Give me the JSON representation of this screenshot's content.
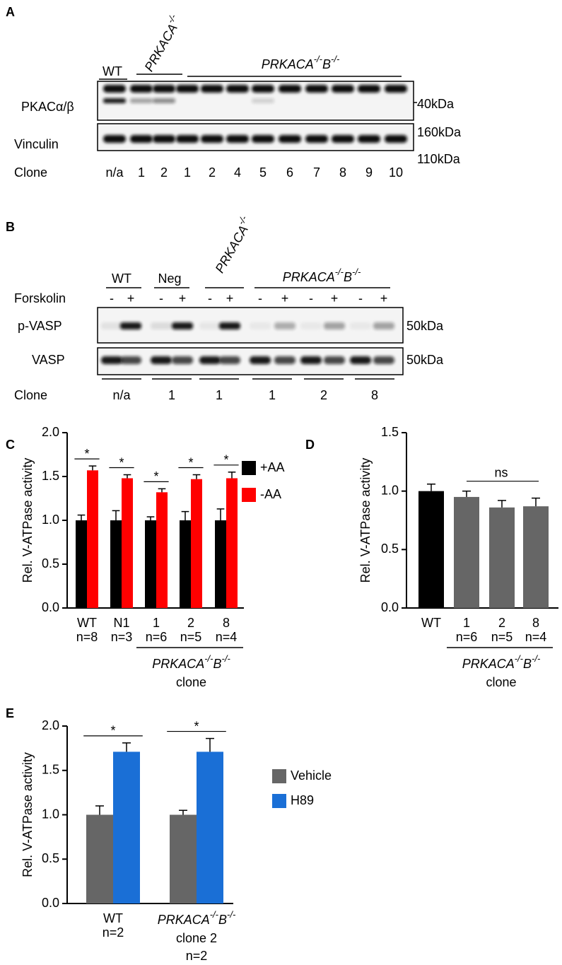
{
  "genotype": {
    "gene_a": "PRKACA",
    "sup": "-/-",
    "gene_b": "B"
  },
  "panel_a": {
    "label": "A",
    "wt": "WT",
    "rows": [
      "PKACα/β",
      "Vinculin"
    ],
    "markers": [
      "40kDa",
      "160kDa",
      "110kDa"
    ],
    "clone_title": "Clone",
    "clones": [
      "n/a",
      "1",
      "2",
      "1",
      "2",
      "4",
      "5",
      "6",
      "7",
      "8",
      "9",
      "10"
    ]
  },
  "panel_b": {
    "label": "B",
    "groups": [
      "WT",
      "Neg"
    ],
    "treatment": "Forskolin",
    "signs": [
      "-",
      "+"
    ],
    "rows": [
      "p-VASP",
      "VASP"
    ],
    "marker": "50kDa",
    "clone_title": "Clone",
    "clones": [
      "n/a",
      "1",
      "1",
      "1",
      "2",
      "8"
    ]
  },
  "chart_data": [
    {
      "panel_label": "C",
      "type": "bar",
      "ylabel": "Rel. V-ATPase activity",
      "categories": [
        "WT",
        "N1",
        "1",
        "2",
        "8"
      ],
      "n_labels": [
        "n=8",
        "n=3",
        "n=6",
        "n=5",
        "n=4"
      ],
      "series": [
        {
          "name": "+AA",
          "color": "#000000",
          "values": [
            1.0,
            1.0,
            1.0,
            1.0,
            1.0
          ],
          "errors": [
            0.06,
            0.11,
            0.04,
            0.1,
            0.13
          ]
        },
        {
          "name": "-AA",
          "color": "#ff0000",
          "values": [
            1.57,
            1.48,
            1.32,
            1.47,
            1.48
          ],
          "errors": [
            0.05,
            0.04,
            0.04,
            0.05,
            0.07
          ]
        }
      ],
      "significance": [
        "*",
        "*",
        "*",
        "*",
        "*"
      ],
      "group_label": "clone",
      "ylim": [
        0,
        2
      ],
      "yticks": [
        {
          "value": 0,
          "label": "0.0"
        },
        0.5,
        {
          "value": 1,
          "label": "1.0"
        },
        1.5,
        {
          "value": 2,
          "label": "2.0"
        }
      ],
      "legend": "top right"
    },
    {
      "panel_label": "D",
      "type": "bar",
      "ylabel": "Rel. V-ATPase activity",
      "categories": [
        "WT",
        "1",
        "2",
        "8"
      ],
      "n_labels": [
        null,
        "n=6",
        "n=5",
        "n=4"
      ],
      "values": [
        1.0,
        0.95,
        0.86,
        0.87
      ],
      "errors": [
        0.06,
        0.05,
        0.06,
        0.07
      ],
      "colors": [
        "#000000",
        "#666666",
        "#666666",
        "#666666"
      ],
      "annotation": "ns",
      "group_label": "clone",
      "ylim": [
        0,
        1.5
      ],
      "yticks": [
        {
          "value": 0,
          "label": "0.0"
        },
        0.5,
        {
          "value": 1,
          "label": "1.0"
        },
        1.5
      ]
    },
    {
      "panel_label": "E",
      "type": "bar",
      "ylabel": "Rel. V-ATPase activity",
      "categories": [
        "WT",
        "clone 2"
      ],
      "category_genotype": [
        null,
        true
      ],
      "n_labels": [
        "n=2",
        "n=2"
      ],
      "series": [
        {
          "name": "Vehicle",
          "color": "#666666",
          "values": [
            1.0,
            1.0
          ],
          "errors": [
            0.1,
            0.05
          ]
        },
        {
          "name": "H89",
          "color": "#1a6fd6",
          "values": [
            1.71,
            1.71
          ],
          "errors": [
            0.1,
            0.15
          ]
        }
      ],
      "significance": [
        "*",
        "*"
      ],
      "ylim": [
        0,
        2
      ],
      "yticks": [
        {
          "value": 0,
          "label": "0.0"
        },
        0.5,
        {
          "value": 1,
          "label": "1.0"
        },
        1.5,
        {
          "value": 2,
          "label": "2.0"
        }
      ],
      "legend": "right"
    }
  ]
}
